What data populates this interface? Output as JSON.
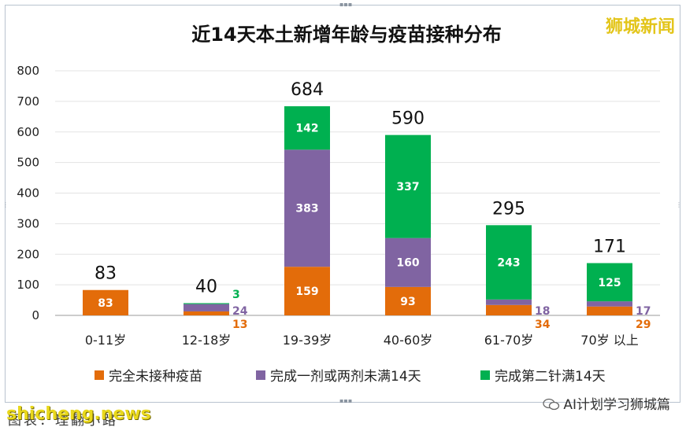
{
  "brand": "狮城新闻",
  "watermark": "shicheng.news",
  "caption": "图表：理翻小路",
  "account": "AI计划学习狮城篇",
  "colors": {
    "unvaccinated": "#E36C0A",
    "one_dose": "#8064A2",
    "two_dose": "#00B050"
  },
  "chart_data": {
    "type": "bar",
    "stacked": true,
    "title": "近14天本土新增年龄与疫苗接种分布",
    "categories": [
      "0-11岁",
      "12-18岁",
      "19-39岁",
      "40-60岁",
      "61-70岁",
      "70岁 以上"
    ],
    "series": [
      {
        "name": "完全未接种疫苗",
        "values": [
          83,
          13,
          159,
          93,
          34,
          29
        ]
      },
      {
        "name": "完成一剂或两剂未满14天",
        "values": [
          0,
          24,
          383,
          160,
          18,
          17
        ]
      },
      {
        "name": "完成第二针满14天",
        "values": [
          0,
          3,
          142,
          337,
          243,
          125
        ]
      }
    ],
    "totals": [
      83,
      40,
      684,
      590,
      295,
      171
    ],
    "ylim": [
      0,
      800
    ],
    "yticks": [
      0,
      100,
      200,
      300,
      400,
      500,
      600,
      700,
      800
    ],
    "grid": true,
    "legend": "bottom"
  }
}
